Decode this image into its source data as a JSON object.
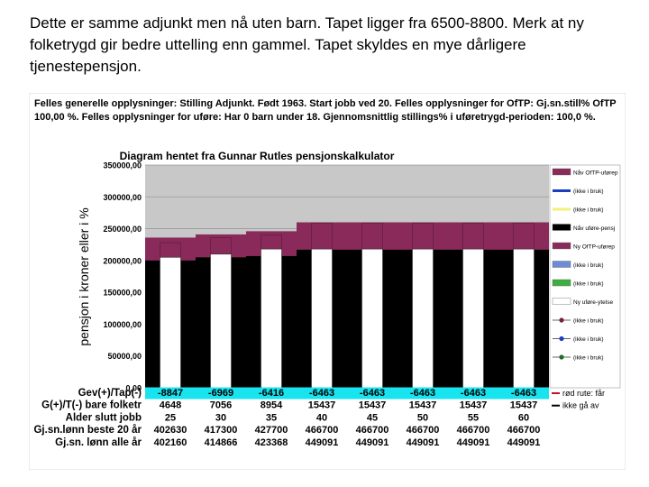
{
  "caption": "Dette er samme adjunkt  men nå uten barn. Tapet ligger fra 6500-8800. Merk at ny folketrygd gir bedre uttelling enn gammel. Tapet skyldes en mye dårligere tjenestepensjon.",
  "info_box": {
    "line1": "Felles generelle opplysninger: Stilling Adjunkt. Født 1963. Start jobb ved 20. Felles opplysninger for OfTP: Gj.sn.still% OfTP",
    "line2": "100,00 %. Felles opplysninger for uføre: Har 0 barn under 18. Gjennomsnittlig stillings% i uføretrygd-perioden: 100,0 %."
  },
  "chart_data": {
    "type": "bar",
    "title": "Diagram hentet fra Gunnar Rutles pensjonskalkulator",
    "ylabel": "pensjon i kroner eller i %",
    "ylim": [
      0,
      350000
    ],
    "y_ticks": [
      "0,00",
      "50000,00",
      "100000,00",
      "150000,00",
      "200000,00",
      "250000,00",
      "300000,00",
      "350000,00"
    ],
    "y_tick_values": [
      0,
      50000,
      100000,
      150000,
      200000,
      250000,
      300000,
      350000
    ],
    "grid": true,
    "colors": {
      "gap": "#8a2a5a",
      "uforetrygd": "#000000",
      "ny_ofTP_ufore": "#8a2a5a",
      "ny_uforeytelse": "#ffffff",
      "plot_bg": "#c8c8c8"
    },
    "new_system": {
      "uforetrygd": [
        205000,
        210000,
        218000,
        218000,
        218000,
        218000,
        218000,
        218000
      ],
      "total": [
        228000,
        236000,
        240000,
        259000,
        259000,
        259000,
        259000,
        259000
      ]
    },
    "old_system": {
      "uforetrygd": [
        200000,
        205000,
        207000,
        217000,
        217000,
        217000,
        217000,
        217000
      ],
      "total": [
        236000,
        241000,
        246000,
        260000,
        260000,
        260000,
        260000,
        260000
      ]
    },
    "legend_position": "right",
    "legend": [
      {
        "label": "Nåv OfTP-uførep",
        "color": "#8a2a5a",
        "kind": "swatch"
      },
      {
        "label": "(ikke i bruk)",
        "color": "#1c3fbf",
        "kind": "line"
      },
      {
        "label": "(ikke i bruk)",
        "color": "#f2f27a",
        "kind": "line"
      },
      {
        "label": "Nåv uføre-pensj",
        "color": "#000000",
        "kind": "swatch"
      },
      {
        "label": "Ny OfTP-uførep",
        "color": "#8a2a5a",
        "kind": "swatch"
      },
      {
        "label": "(ikke i bruk)",
        "color": "#6f8ad6",
        "kind": "swatch"
      },
      {
        "label": "(ikke i bruk)",
        "color": "#3fae3f",
        "kind": "swatch"
      },
      {
        "label": "Ny uføre-ytelse",
        "color": "#ffffff",
        "kind": "swatch"
      },
      {
        "label": "(ikke i bruk)",
        "color": "#7a1f3a",
        "kind": "marker"
      },
      {
        "label": "(ikke i bruk)",
        "color": "#1c3fbf",
        "kind": "marker"
      },
      {
        "label": "(ikke i bruk)",
        "color": "#1f6b2a",
        "kind": "marker"
      }
    ],
    "legend_bottom": [
      {
        "label": "rød rute: får",
        "color": "#c0122a"
      },
      {
        "label": "ikke gå av",
        "color": "#000000"
      }
    ],
    "table": {
      "rows": [
        {
          "label": "Gev(+)/Tap(-)",
          "values": [
            "-8847",
            "-6969",
            "-6416",
            "-6463",
            "-6463",
            "-6463",
            "-6463",
            "-6463"
          ],
          "highlight": true
        },
        {
          "label": "G(+)/T(-) bare folketr",
          "values": [
            "4648",
            "7056",
            "8954",
            "15437",
            "15437",
            "15437",
            "15437",
            "15437"
          ],
          "highlight": false
        },
        {
          "label": "Alder slutt jobb",
          "values": [
            "25",
            "30",
            "35",
            "40",
            "45",
            "50",
            "55",
            "60"
          ],
          "highlight": false
        },
        {
          "label": "Gj.sn.lønn beste 20 år",
          "values": [
            "402630",
            "417300",
            "427700",
            "466700",
            "466700",
            "466700",
            "466700",
            "466700"
          ],
          "highlight": false
        },
        {
          "label": "Gj.sn. lønn alle år",
          "values": [
            "402160",
            "414866",
            "423368",
            "449091",
            "449091",
            "449091",
            "449091",
            "449091"
          ],
          "highlight": false
        }
      ]
    }
  }
}
